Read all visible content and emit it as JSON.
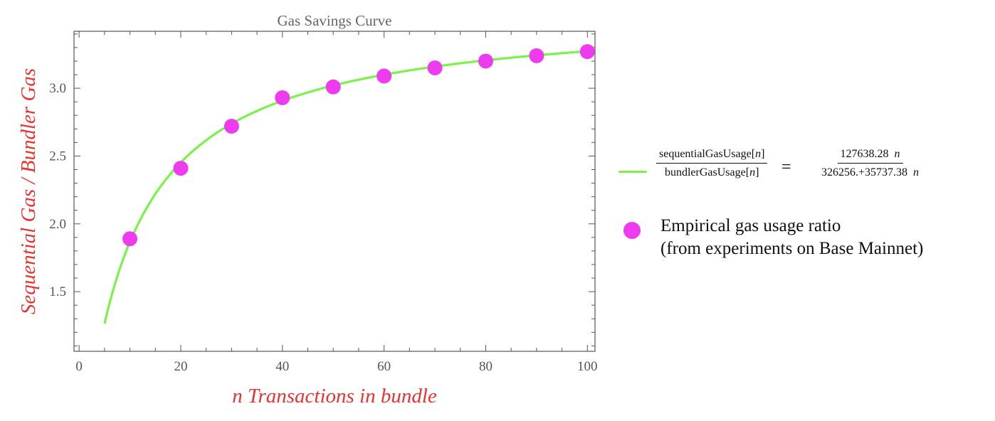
{
  "chart_data": {
    "type": "line",
    "title": "Gas Savings Curve",
    "xlabel": "n Transactions in bundle",
    "ylabel": "Sequential Gas / Bundler Gas",
    "xlim": [
      -1,
      101.5
    ],
    "ylim": [
      1.06,
      3.42
    ],
    "x_ticks": [
      0,
      20,
      40,
      60,
      80,
      100
    ],
    "y_ticks": [
      1.5,
      2.0,
      2.5,
      3.0
    ],
    "grid": false,
    "legend_position": "right",
    "series": [
      {
        "type": "line",
        "color": "#7af24a",
        "formula": {
          "numerator_coef": 127638.28,
          "denominator_const": 326256.0,
          "denominator_coef": 35737.38
        },
        "x_range": [
          5,
          100
        ]
      },
      {
        "name": "Empirical gas usage ratio",
        "type": "scatter",
        "color": "#ef3bef",
        "x": [
          10,
          20,
          30,
          40,
          50,
          60,
          70,
          80,
          90,
          100
        ],
        "y": [
          1.89,
          2.41,
          2.72,
          2.93,
          3.01,
          3.09,
          3.15,
          3.2,
          3.24,
          3.27
        ]
      }
    ],
    "legend": {
      "line_entry": {
        "lhs_num": "sequentialGasUsage[",
        "lhs_den": "bundlerGasUsage[",
        "var": "n",
        "close": "]",
        "equals": "=",
        "rhs_num": "127638.28",
        "rhs_den": "326256.+35737.38"
      },
      "scatter_entry": {
        "line1": "Empirical gas usage ratio",
        "line2": "(from experiments on Base Mainnet)"
      }
    }
  }
}
